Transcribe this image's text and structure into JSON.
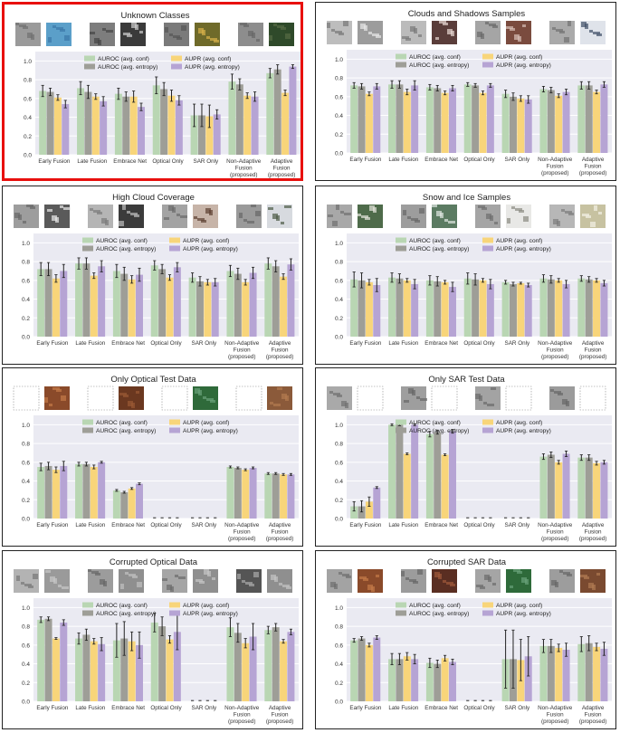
{
  "legend": [
    "AUROC (avg. conf)",
    "AUROC (avg. entropy)",
    "AUPR (avg. conf)",
    "AUPR (avg. entropy)"
  ],
  "colors": [
    "#b9d6b3",
    "#9e9e97",
    "#f8d57a",
    "#b6a4d4"
  ],
  "plot_background": "#eaeaf2",
  "chart_data": [
    {
      "type": "bar",
      "title": "Unknown Classes",
      "highlighted": true,
      "categories": [
        "Early Fusion",
        "Late Fusion",
        "Embrace Net",
        "Optical Only",
        "SAR Only",
        "Non-Adaptive Fusion (proposed)",
        "Adaptive Fusion (proposed)"
      ],
      "yticks": [
        "0.0",
        "0.2",
        "0.4",
        "0.6",
        "0.8",
        "1.0"
      ],
      "ylim": [
        0,
        1.1
      ],
      "series": [
        {
          "name": "AUROC (avg. conf)",
          "values": [
            0.68,
            0.71,
            0.65,
            0.74,
            0.42,
            0.78,
            0.87
          ],
          "errors": [
            0.06,
            0.07,
            0.06,
            0.09,
            0.12,
            0.08,
            0.05
          ]
        },
        {
          "name": "AUROC (avg. entropy)",
          "values": [
            0.67,
            0.67,
            0.62,
            0.7,
            0.42,
            0.75,
            0.91
          ],
          "errors": [
            0.04,
            0.07,
            0.05,
            0.07,
            0.12,
            0.06,
            0.05
          ]
        },
        {
          "name": "AUPR (avg. conf)",
          "values": [
            0.61,
            0.62,
            0.62,
            0.63,
            0.41,
            0.63,
            0.66
          ],
          "errors": [
            0.03,
            0.03,
            0.06,
            0.06,
            0.12,
            0.03,
            0.03
          ]
        },
        {
          "name": "AUPR (avg. entropy)",
          "values": [
            0.54,
            0.57,
            0.51,
            0.58,
            0.43,
            0.62,
            0.94
          ],
          "errors": [
            0.04,
            0.05,
            0.04,
            0.05,
            0.05,
            0.05,
            0.02
          ]
        }
      ]
    },
    {
      "type": "bar",
      "title": "Clouds and Shadows Samples",
      "highlighted": false,
      "categories": [
        "Early Fusion",
        "Late Fusion",
        "Embrace Net",
        "Optical Only",
        "SAR Only",
        "Non-Adaptive Fusion (proposed)",
        "Adaptive Fusion (proposed)"
      ],
      "yticks": [
        "0.0",
        "0.2",
        "0.4",
        "0.6",
        "0.8",
        "1.0"
      ],
      "ylim": [
        0,
        1.1
      ],
      "series": [
        {
          "name": "AUROC (avg. conf)",
          "values": [
            0.72,
            0.73,
            0.7,
            0.73,
            0.63,
            0.68,
            0.72
          ],
          "errors": [
            0.03,
            0.04,
            0.03,
            0.02,
            0.04,
            0.03,
            0.04
          ]
        },
        {
          "name": "AUROC (avg. entropy)",
          "values": [
            0.71,
            0.73,
            0.69,
            0.72,
            0.6,
            0.67,
            0.72
          ],
          "errors": [
            0.03,
            0.04,
            0.03,
            0.02,
            0.04,
            0.03,
            0.04
          ]
        },
        {
          "name": "AUPR (avg. conf)",
          "values": [
            0.63,
            0.65,
            0.64,
            0.64,
            0.58,
            0.61,
            0.65
          ],
          "errors": [
            0.02,
            0.03,
            0.02,
            0.02,
            0.03,
            0.02,
            0.02
          ]
        },
        {
          "name": "AUPR (avg. entropy)",
          "values": [
            0.71,
            0.72,
            0.69,
            0.72,
            0.57,
            0.65,
            0.73
          ],
          "errors": [
            0.03,
            0.05,
            0.03,
            0.02,
            0.04,
            0.03,
            0.03
          ]
        }
      ]
    },
    {
      "type": "bar",
      "title": "High Cloud Coverage",
      "highlighted": false,
      "categories": [
        "Early Fusion",
        "Late Fusion",
        "Embrace Net",
        "Optical Only",
        "SAR Only",
        "Non-Adaptive Fusion (proposed)",
        "Adaptive Fusion (proposed)"
      ],
      "yticks": [
        "0.0",
        "0.2",
        "0.4",
        "0.6",
        "0.8",
        "1.0"
      ],
      "ylim": [
        0,
        1.1
      ],
      "series": [
        {
          "name": "AUROC (avg. conf)",
          "values": [
            0.72,
            0.78,
            0.7,
            0.76,
            0.63,
            0.7,
            0.78
          ],
          "errors": [
            0.07,
            0.06,
            0.07,
            0.05,
            0.05,
            0.06,
            0.06
          ]
        },
        {
          "name": "AUROC (avg. entropy)",
          "values": [
            0.72,
            0.78,
            0.67,
            0.72,
            0.59,
            0.67,
            0.75
          ],
          "errors": [
            0.07,
            0.06,
            0.07,
            0.05,
            0.05,
            0.06,
            0.06
          ]
        },
        {
          "name": "AUPR (avg. conf)",
          "values": [
            0.62,
            0.65,
            0.61,
            0.63,
            0.58,
            0.58,
            0.64
          ],
          "errors": [
            0.04,
            0.03,
            0.04,
            0.03,
            0.03,
            0.03,
            0.03
          ]
        },
        {
          "name": "AUPR (avg. entropy)",
          "values": [
            0.7,
            0.75,
            0.66,
            0.74,
            0.58,
            0.68,
            0.77
          ],
          "errors": [
            0.07,
            0.06,
            0.07,
            0.05,
            0.04,
            0.06,
            0.06
          ]
        }
      ]
    },
    {
      "type": "bar",
      "title": "Snow and Ice Samples",
      "highlighted": false,
      "categories": [
        "Early Fusion",
        "Late Fusion",
        "Embrace Net",
        "Optical Only",
        "SAR Only",
        "Non-Adaptive Fusion (proposed)",
        "Adaptive Fusion (proposed)"
      ],
      "yticks": [
        "0.0",
        "0.2",
        "0.4",
        "0.6",
        "0.8",
        "1.0"
      ],
      "ylim": [
        0,
        1.1
      ],
      "series": [
        {
          "name": "AUROC (avg. conf)",
          "values": [
            0.61,
            0.63,
            0.6,
            0.62,
            0.58,
            0.62,
            0.62
          ],
          "errors": [
            0.08,
            0.05,
            0.05,
            0.06,
            0.02,
            0.04,
            0.03
          ]
        },
        {
          "name": "AUROC (avg. entropy)",
          "values": [
            0.6,
            0.62,
            0.59,
            0.61,
            0.56,
            0.61,
            0.61
          ],
          "errors": [
            0.08,
            0.05,
            0.05,
            0.06,
            0.02,
            0.04,
            0.03
          ]
        },
        {
          "name": "AUPR (avg. conf)",
          "values": [
            0.58,
            0.6,
            0.58,
            0.6,
            0.57,
            0.6,
            0.6
          ],
          "errors": [
            0.03,
            0.02,
            0.02,
            0.02,
            0.01,
            0.02,
            0.02
          ]
        },
        {
          "name": "AUPR (avg. entropy)",
          "values": [
            0.55,
            0.56,
            0.53,
            0.56,
            0.55,
            0.56,
            0.57
          ],
          "errors": [
            0.07,
            0.05,
            0.05,
            0.05,
            0.02,
            0.04,
            0.03
          ]
        }
      ]
    },
    {
      "type": "bar",
      "title": "Only Optical Test Data",
      "highlighted": false,
      "categories": [
        "Early Fusion",
        "Late Fusion",
        "Embrace Net",
        "Optical Only",
        "SAR Only",
        "Non-Adaptive Fusion (proposed)",
        "Adaptive Fusion (proposed)"
      ],
      "yticks": [
        "0.0",
        "0.2",
        "0.4",
        "0.6",
        "0.8",
        "1.0"
      ],
      "ylim": [
        0,
        1.1
      ],
      "series": [
        {
          "name": "AUROC (avg. conf)",
          "values": [
            0.55,
            0.58,
            0.3,
            0.0,
            0.0,
            0.55,
            0.48
          ],
          "errors": [
            0.04,
            0.02,
            0.01,
            0.0,
            0.0,
            0.01,
            0.01
          ]
        },
        {
          "name": "AUROC (avg. entropy)",
          "values": [
            0.56,
            0.58,
            0.28,
            0.0,
            0.0,
            0.54,
            0.48
          ],
          "errors": [
            0.04,
            0.02,
            0.01,
            0.0,
            0.0,
            0.01,
            0.01
          ]
        },
        {
          "name": "AUPR (avg. conf)",
          "values": [
            0.52,
            0.55,
            0.32,
            0.0,
            0.0,
            0.52,
            0.47
          ],
          "errors": [
            0.03,
            0.02,
            0.01,
            0.0,
            0.0,
            0.01,
            0.01
          ]
        },
        {
          "name": "AUPR (avg. entropy)",
          "values": [
            0.56,
            0.6,
            0.37,
            0.0,
            0.0,
            0.54,
            0.47
          ],
          "errors": [
            0.05,
            0.01,
            0.01,
            0.0,
            0.0,
            0.01,
            0.01
          ]
        }
      ]
    },
    {
      "type": "bar",
      "title": "Only SAR Test Data",
      "highlighted": false,
      "categories": [
        "Early Fusion",
        "Late Fusion",
        "Embrace Net",
        "Optical Only",
        "SAR Only",
        "Non-Adaptive Fusion (proposed)",
        "Adaptive Fusion (proposed)"
      ],
      "yticks": [
        "0.0",
        "0.2",
        "0.4",
        "0.6",
        "0.8",
        "1.0"
      ],
      "ylim": [
        0,
        1.1
      ],
      "series": [
        {
          "name": "AUROC (avg. conf)",
          "values": [
            0.13,
            1.0,
            0.9,
            0.0,
            0.0,
            0.66,
            0.65
          ],
          "errors": [
            0.05,
            0.01,
            0.03,
            0.0,
            0.0,
            0.03,
            0.03
          ]
        },
        {
          "name": "AUROC (avg. entropy)",
          "values": [
            0.13,
            1.0,
            0.92,
            0.0,
            0.0,
            0.68,
            0.65
          ],
          "errors": [
            0.06,
            0.01,
            0.02,
            0.0,
            0.0,
            0.03,
            0.03
          ]
        },
        {
          "name": "AUPR (avg. conf)",
          "values": [
            0.18,
            0.69,
            0.68,
            0.0,
            0.0,
            0.6,
            0.59
          ],
          "errors": [
            0.05,
            0.01,
            0.01,
            0.0,
            0.0,
            0.02,
            0.02
          ]
        },
        {
          "name": "AUPR (avg. entropy)",
          "values": [
            0.33,
            1.0,
            0.93,
            0.0,
            0.0,
            0.69,
            0.6
          ],
          "errors": [
            0.01,
            0.01,
            0.02,
            0.0,
            0.0,
            0.03,
            0.02
          ]
        }
      ]
    },
    {
      "type": "bar",
      "title": "Corrupted Optical Data",
      "highlighted": false,
      "categories": [
        "Early Fusion",
        "Late Fusion",
        "Embrace Net",
        "Optical Only",
        "SAR Only",
        "Non-Adaptive Fusion (proposed)",
        "Adaptive Fusion (proposed)"
      ],
      "yticks": [
        "0.0",
        "0.2",
        "0.4",
        "0.6",
        "0.8",
        "1.0"
      ],
      "ylim": [
        0,
        1.1
      ],
      "series": [
        {
          "name": "AUROC (avg. conf)",
          "values": [
            0.87,
            0.67,
            0.65,
            0.84,
            0.0,
            0.79,
            0.76
          ],
          "errors": [
            0.03,
            0.06,
            0.18,
            0.1,
            0.0,
            0.1,
            0.04
          ]
        },
        {
          "name": "AUROC (avg. entropy)",
          "values": [
            0.88,
            0.71,
            0.67,
            0.8,
            0.0,
            0.73,
            0.79
          ],
          "errors": [
            0.02,
            0.06,
            0.18,
            0.1,
            0.0,
            0.1,
            0.04
          ]
        },
        {
          "name": "AUPR (avg. conf)",
          "values": [
            0.67,
            0.64,
            0.64,
            0.66,
            0.0,
            0.62,
            0.64
          ],
          "errors": [
            0.01,
            0.03,
            0.1,
            0.04,
            0.0,
            0.05,
            0.02
          ]
        },
        {
          "name": "AUPR (avg. entropy)",
          "values": [
            0.84,
            0.61,
            0.6,
            0.74,
            0.0,
            0.69,
            0.74
          ],
          "errors": [
            0.03,
            0.07,
            0.14,
            0.19,
            0.0,
            0.14,
            0.03
          ]
        }
      ]
    },
    {
      "type": "bar",
      "title": "Corrupted SAR Data",
      "highlighted": false,
      "categories": [
        "Early Fusion",
        "Late Fusion",
        "Embrace Net",
        "Optical Only",
        "SAR Only",
        "Non-Adaptive Fusion (proposed)",
        "Adaptive Fusion (proposed)"
      ],
      "yticks": [
        "0.0",
        "0.2",
        "0.4",
        "0.6",
        "0.8",
        "1.0"
      ],
      "ylim": [
        0,
        1.1
      ],
      "series": [
        {
          "name": "AUROC (avg. conf)",
          "values": [
            0.65,
            0.45,
            0.41,
            0.0,
            0.45,
            0.59,
            0.61
          ],
          "errors": [
            0.02,
            0.06,
            0.05,
            0.0,
            0.31,
            0.07,
            0.08
          ]
        },
        {
          "name": "AUROC (avg. entropy)",
          "values": [
            0.67,
            0.45,
            0.4,
            0.0,
            0.45,
            0.59,
            0.62
          ],
          "errors": [
            0.02,
            0.06,
            0.04,
            0.0,
            0.31,
            0.07,
            0.08
          ]
        },
        {
          "name": "AUPR (avg. conf)",
          "values": [
            0.6,
            0.48,
            0.46,
            0.0,
            0.44,
            0.57,
            0.58
          ],
          "errors": [
            0.02,
            0.04,
            0.03,
            0.0,
            0.22,
            0.04,
            0.04
          ]
        },
        {
          "name": "AUPR (avg. entropy)",
          "values": [
            0.68,
            0.45,
            0.42,
            0.0,
            0.48,
            0.55,
            0.56
          ],
          "errors": [
            0.02,
            0.05,
            0.03,
            0.0,
            0.21,
            0.07,
            0.07
          ]
        }
      ]
    }
  ]
}
